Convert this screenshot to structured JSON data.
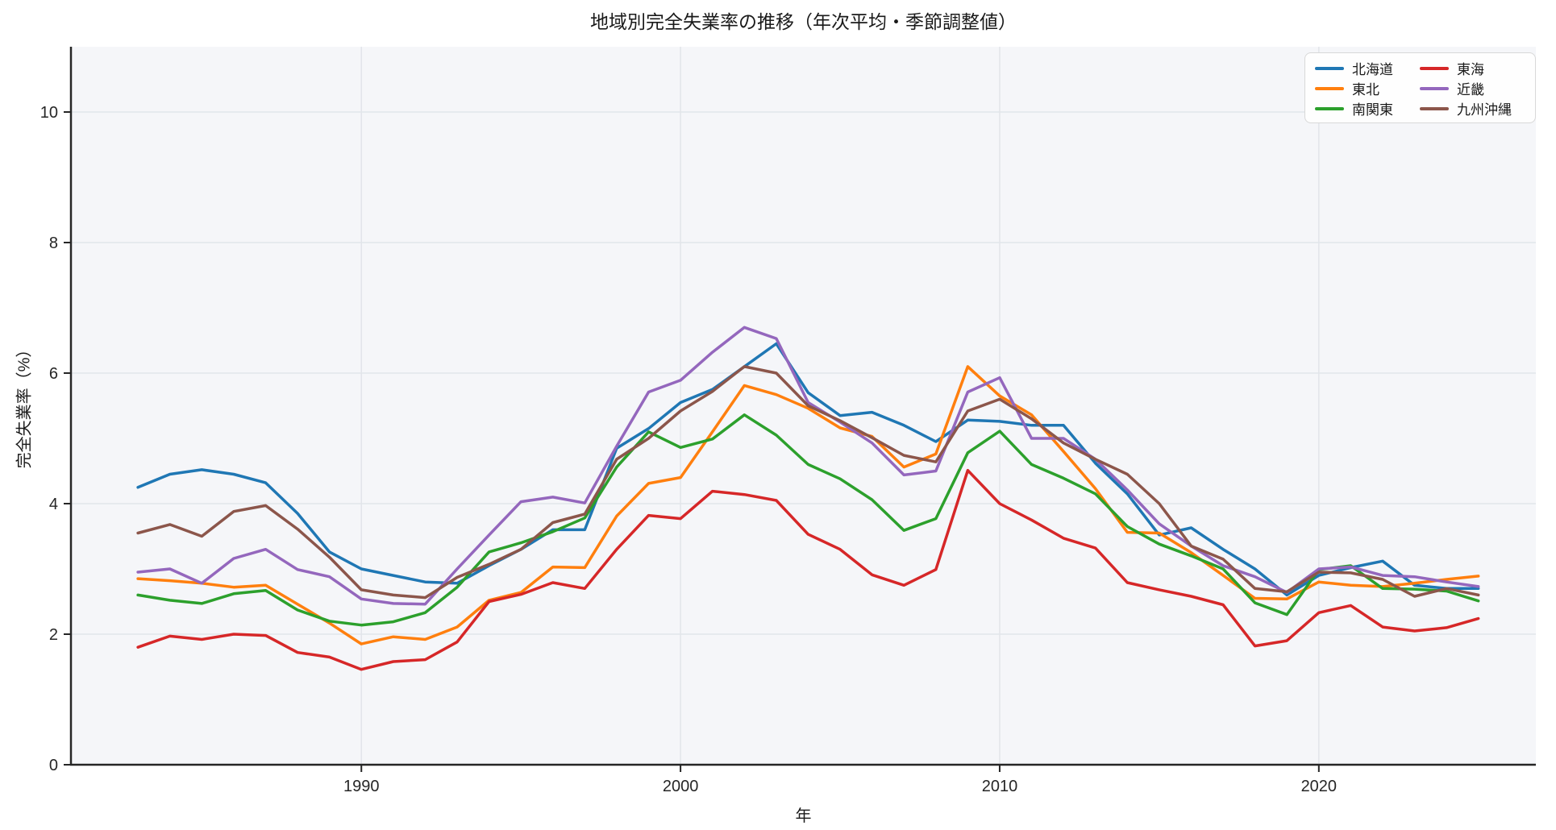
{
  "chart_data": {
    "type": "line",
    "title": "地域別完全失業率の推移（年次平均・季節調整値）",
    "xlabel": "年",
    "ylabel": "完全失業率（%）",
    "x_tick_labels": [
      "1990",
      "2000",
      "2010",
      "2020"
    ],
    "x_tick_values": [
      1990,
      2000,
      2010,
      2020
    ],
    "y_tick_labels": [
      "0",
      "2",
      "4",
      "6",
      "8",
      "10"
    ],
    "y_tick_values": [
      0,
      2,
      4,
      6,
      8,
      10
    ],
    "xlim": [
      1980.9,
      2026.8
    ],
    "ylim": [
      0,
      11
    ],
    "grid": true,
    "legend_position": "upper right",
    "x": [
      1983,
      1984,
      1985,
      1986,
      1987,
      1988,
      1989,
      1990,
      1991,
      1992,
      1993,
      1994,
      1995,
      1996,
      1997,
      1998,
      1999,
      2000,
      2001,
      2002,
      2003,
      2004,
      2005,
      2006,
      2007,
      2008,
      2009,
      2010,
      2011,
      2012,
      2013,
      2014,
      2015,
      2016,
      2017,
      2018,
      2019,
      2020,
      2021,
      2022,
      2023,
      2024,
      2025
    ],
    "series": [
      {
        "id": "hokkaido",
        "name": "北海道",
        "color": "#1f77b4",
        "values": [
          4.25,
          4.45,
          4.52,
          4.45,
          4.32,
          3.85,
          3.26,
          3.0,
          2.9,
          2.8,
          2.78,
          3.05,
          3.3,
          3.6,
          3.6,
          4.85,
          5.15,
          5.55,
          5.75,
          6.1,
          6.45,
          5.7,
          5.35,
          5.4,
          5.2,
          4.95,
          5.28,
          5.26,
          5.2,
          5.2,
          4.62,
          4.15,
          3.52,
          3.63,
          3.3,
          3.0,
          2.6,
          2.9,
          3.02,
          3.12,
          2.75,
          2.7,
          2.7
        ]
      },
      {
        "id": "tohoku",
        "name": "東北",
        "color": "#ff7f0e",
        "values": [
          2.85,
          2.82,
          2.78,
          2.72,
          2.75,
          2.46,
          2.17,
          1.85,
          1.96,
          1.92,
          2.11,
          2.52,
          2.64,
          3.03,
          3.02,
          3.81,
          4.31,
          4.4,
          5.1,
          5.81,
          5.67,
          5.46,
          5.16,
          5.03,
          4.56,
          4.76,
          6.1,
          5.65,
          5.36,
          4.8,
          4.23,
          3.56,
          3.55,
          3.25,
          2.9,
          2.55,
          2.54,
          2.8,
          2.75,
          2.73,
          2.78,
          2.84,
          2.89
        ]
      },
      {
        "id": "minami-kanto",
        "name": "南関東",
        "color": "#2ca02c",
        "values": [
          2.6,
          2.52,
          2.47,
          2.62,
          2.67,
          2.37,
          2.2,
          2.14,
          2.19,
          2.33,
          2.72,
          3.26,
          3.4,
          3.57,
          3.78,
          4.56,
          5.1,
          4.86,
          4.99,
          5.36,
          5.05,
          4.6,
          4.38,
          4.06,
          3.59,
          3.77,
          4.78,
          5.11,
          4.6,
          4.39,
          4.15,
          3.65,
          3.38,
          3.2,
          3.0,
          2.48,
          2.3,
          2.99,
          3.05,
          2.7,
          2.69,
          2.66,
          2.51
        ]
      },
      {
        "id": "tokai",
        "name": "東海",
        "color": "#d62728",
        "values": [
          1.8,
          1.97,
          1.92,
          2.0,
          1.98,
          1.72,
          1.65,
          1.46,
          1.58,
          1.61,
          1.88,
          2.5,
          2.61,
          2.79,
          2.7,
          3.3,
          3.82,
          3.77,
          4.19,
          4.14,
          4.05,
          3.53,
          3.3,
          2.91,
          2.75,
          2.99,
          4.51,
          4.0,
          3.75,
          3.47,
          3.32,
          2.79,
          2.68,
          2.58,
          2.45,
          1.82,
          1.9,
          2.33,
          2.44,
          2.11,
          2.05,
          2.1,
          2.24
        ]
      },
      {
        "id": "kinki",
        "name": "近畿",
        "color": "#9467bd",
        "values": [
          2.95,
          3.0,
          2.78,
          3.16,
          3.3,
          2.99,
          2.88,
          2.54,
          2.47,
          2.46,
          3.0,
          3.52,
          4.03,
          4.1,
          4.01,
          4.88,
          5.71,
          5.89,
          6.32,
          6.7,
          6.53,
          5.55,
          5.25,
          4.93,
          4.44,
          4.5,
          5.71,
          5.93,
          5.0,
          5.0,
          4.68,
          4.21,
          3.69,
          3.35,
          3.05,
          2.88,
          2.64,
          3.0,
          3.03,
          2.9,
          2.88,
          2.8,
          2.73
        ]
      },
      {
        "id": "kyushu-okinawa",
        "name": "九州沖縄",
        "color": "#8c564b",
        "values": [
          3.55,
          3.68,
          3.5,
          3.88,
          3.97,
          3.61,
          3.18,
          2.68,
          2.6,
          2.56,
          2.87,
          3.07,
          3.3,
          3.71,
          3.84,
          4.68,
          5.0,
          5.42,
          5.72,
          6.1,
          6.0,
          5.5,
          5.27,
          5.01,
          4.74,
          4.64,
          5.42,
          5.6,
          5.3,
          4.93,
          4.68,
          4.45,
          4.0,
          3.35,
          3.15,
          2.7,
          2.65,
          2.95,
          2.94,
          2.84,
          2.58,
          2.7,
          2.6
        ]
      }
    ]
  },
  "style": {
    "axes_background": "#f5f6f9",
    "grid_color": "#e2e5ea",
    "spine_color": "#262626",
    "tick_label_color": "#262626",
    "line_width": 3.5
  }
}
